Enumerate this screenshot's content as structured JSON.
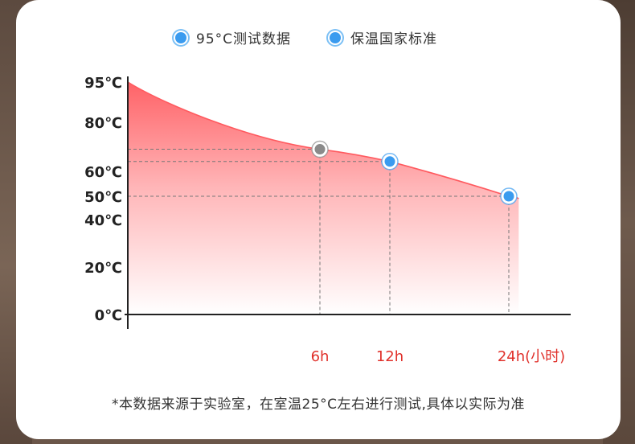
{
  "legend": [
    {
      "label": "95°C测试数据",
      "color": "#3a9bef"
    },
    {
      "label": "保温国家标准",
      "color": "#3a9bef"
    }
  ],
  "footnote": "*本数据来源于实验室，在室温25°C左右进行测试,具体以实际为准",
  "chart_data": {
    "type": "area",
    "y_ticks": [
      "95℃",
      "80℃",
      "60℃",
      "50℃",
      "40℃",
      "20℃",
      "0℃"
    ],
    "x_ticks": [
      "6h",
      "12h",
      "24h(小时)"
    ],
    "series": [
      {
        "name": "95°C测试数据",
        "x": [
          0,
          6,
          12,
          24,
          25
        ],
        "y": [
          95,
          69,
          64,
          50,
          49
        ],
        "fill_color": "#ff5a5f"
      }
    ],
    "markers": [
      {
        "x": 6,
        "y": 69,
        "color": "#8a8a8a",
        "style": "gray"
      },
      {
        "x": 12,
        "y": 64,
        "color": "#3a9bef",
        "style": "blue"
      },
      {
        "x": 24,
        "y": 50,
        "color": "#3a9bef",
        "style": "blue"
      }
    ],
    "x_label_color": "#e0302a",
    "grid": false
  }
}
